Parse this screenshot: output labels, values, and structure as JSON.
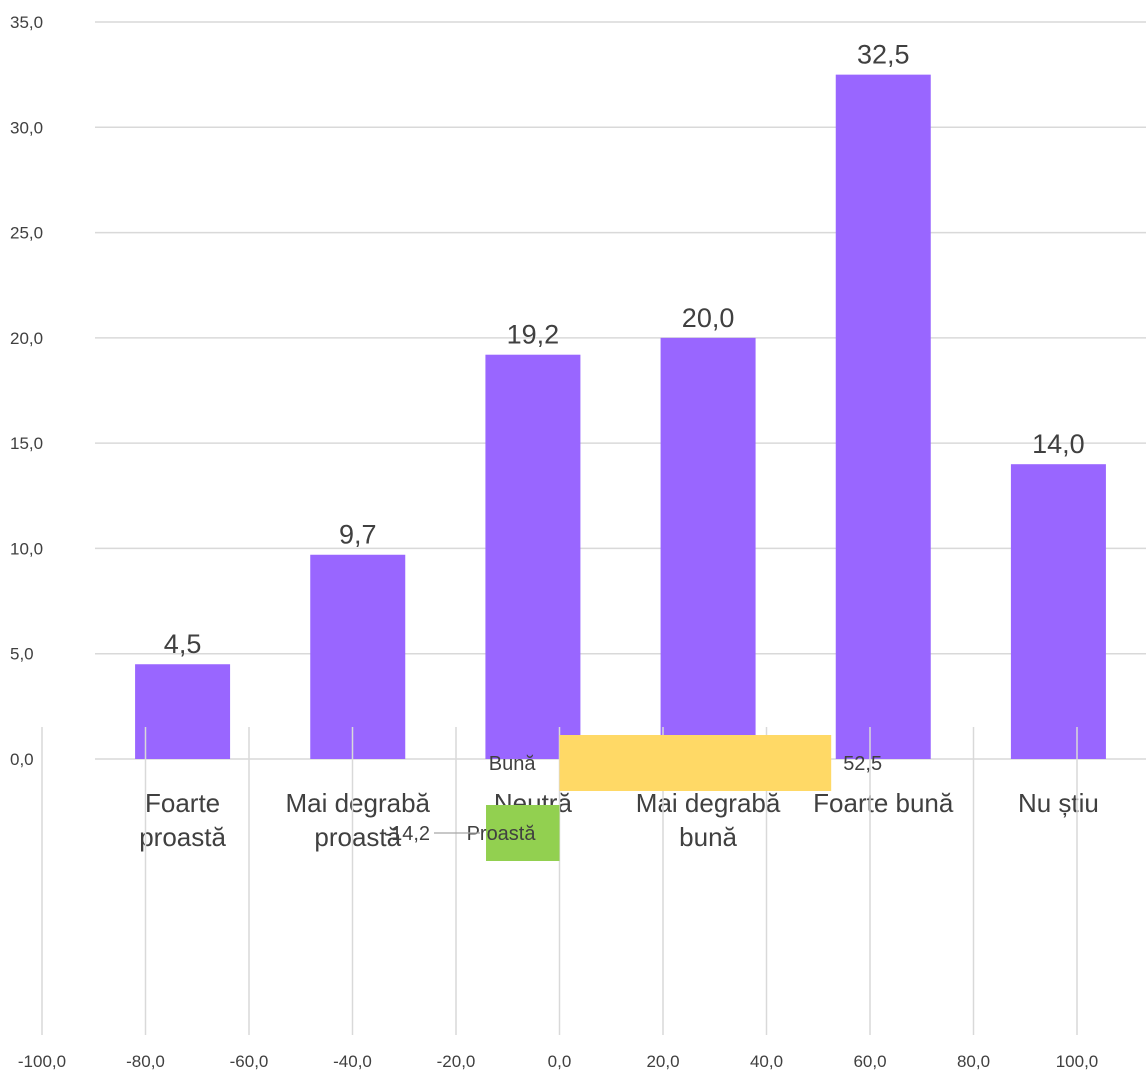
{
  "chart_data": [
    {
      "type": "bar",
      "categories": [
        [
          "Foarte",
          "proastă"
        ],
        [
          "Mai degrabă",
          "proastă"
        ],
        [
          "Neutră"
        ],
        [
          "Mai degrabă",
          "bună"
        ],
        [
          "Foarte bună"
        ],
        [
          "Nu știu"
        ]
      ],
      "values": [
        4.5,
        9.7,
        19.2,
        20.0,
        32.5,
        14.0
      ],
      "value_labels": [
        "4,5",
        "9,7",
        "19,2",
        "20,0",
        "32,5",
        "14,0"
      ],
      "ylim": [
        0,
        35
      ],
      "yticks": [
        "0,0",
        "5,0",
        "10,0",
        "15,0",
        "20,0",
        "25,0",
        "30,0",
        "35,0"
      ],
      "grid": "horizontal",
      "bar_color": "#9966ff",
      "title": "",
      "xlabel": "",
      "ylabel": ""
    },
    {
      "type": "bar",
      "orientation": "horizontal",
      "categories": [
        "Bună",
        "Proastă"
      ],
      "values": [
        52.5,
        -14.2
      ],
      "value_labels": [
        "52,5",
        "-14,2"
      ],
      "colors": [
        "#ffd966",
        "#92d050"
      ],
      "xlim": [
        -100,
        100
      ],
      "xticks": [
        "-100,0",
        "-80,0",
        "-60,0",
        "-40,0",
        "-20,0",
        "0,0",
        "20,0",
        "40,0",
        "60,0",
        "80,0",
        "100,0"
      ],
      "grid": "vertical",
      "title": "",
      "xlabel": "",
      "ylabel": ""
    }
  ]
}
